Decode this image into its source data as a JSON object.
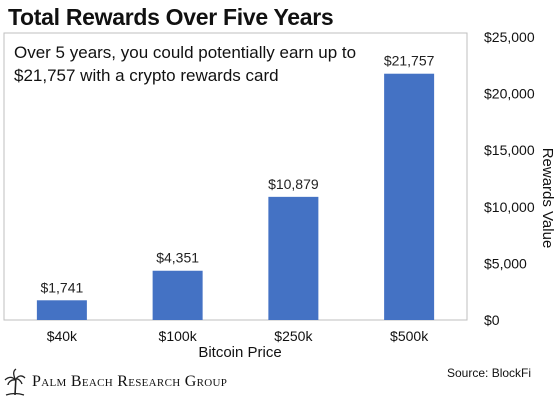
{
  "title": "Total Rewards Over Five Years",
  "source": "Source: BlockFi",
  "brand": "Palm Beach Research Group",
  "chart_data": {
    "type": "bar",
    "annotation": [
      "Over 5 years, you could potentially earn up to",
      "$21,757 with a crypto rewards card"
    ],
    "categories": [
      "$40k",
      "$100k",
      "$250k",
      "$500k"
    ],
    "values": [
      1741,
      4351,
      10879,
      21757
    ],
    "data_labels": [
      "$1,741",
      "$4,351",
      "$10,879",
      "$21,757"
    ],
    "xlabel": "Bitcoin Price",
    "ylabel": "Rewards Value",
    "ylim": [
      0,
      25000
    ],
    "yticks": [
      0,
      5000,
      10000,
      15000,
      20000,
      25000
    ],
    "ytick_labels": [
      "$0",
      "$5,000",
      "$10,000",
      "$15,000",
      "$20,000",
      "$25,000"
    ],
    "yaxis_side": "right",
    "grid": false,
    "bar_color": "#4472c4"
  }
}
